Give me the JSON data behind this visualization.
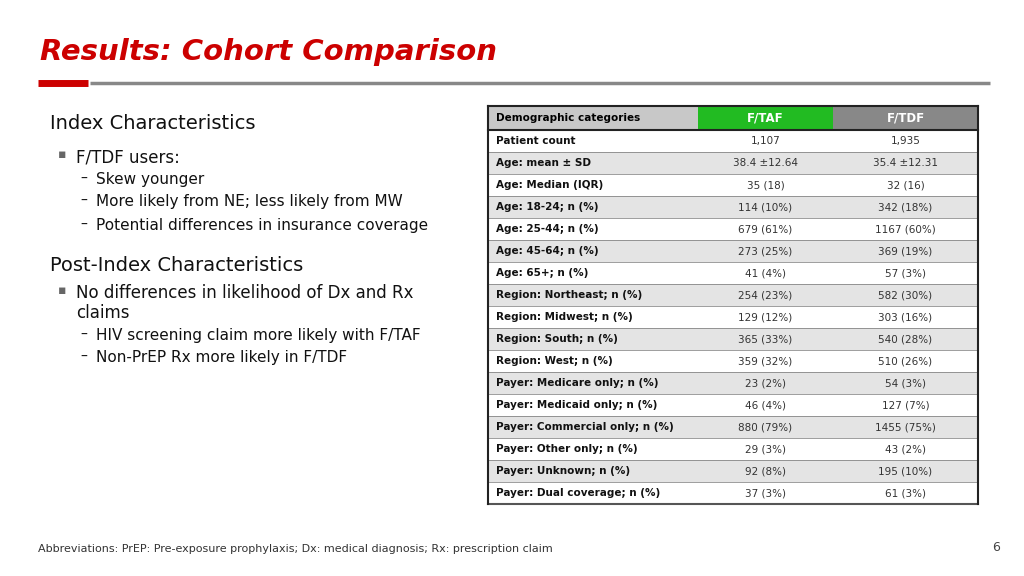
{
  "title": "Results: Cohort Comparison",
  "title_color": "#CC0000",
  "background_color": "#FFFFFF",
  "slide_number": "6",
  "left_text": {
    "section1_heading": "Index Characteristics",
    "bullet1": "F/TDF users:",
    "sub_bullets1": [
      "Skew younger",
      "More likely from NE; less likely from MW",
      "Potential differences in insurance coverage"
    ],
    "section2_heading": "Post-Index Characteristics",
    "bullet2_line1": "No differences in likelihood of Dx and Rx",
    "bullet2_line2": "claims",
    "sub_bullets2": [
      "HIV screening claim more likely with F/TAF",
      "Non-PrEP Rx more likely in F/TDF"
    ]
  },
  "table": {
    "header": [
      "Demographic categories",
      "F/TAF",
      "F/TDF"
    ],
    "header_bg_colors": [
      "#C8C8C8",
      "#22BB22",
      "#888888"
    ],
    "header_text_colors": [
      "#000000",
      "#FFFFFF",
      "#FFFFFF"
    ],
    "rows": [
      [
        "Patient count",
        "1,107",
        "1,935"
      ],
      [
        "Age: mean ± SD",
        "38.4 ±12.64",
        "35.4 ±12.31"
      ],
      [
        "Age: Median (IQR)",
        "35 (18)",
        "32 (16)"
      ],
      [
        "Age: 18-24; n (%)",
        "114 (10%)",
        "342 (18%)"
      ],
      [
        "Age: 25-44; n (%)",
        "679 (61%)",
        "1167 (60%)"
      ],
      [
        "Age: 45-64; n (%)",
        "273 (25%)",
        "369 (19%)"
      ],
      [
        "Age: 65+; n (%)",
        "41 (4%)",
        "57 (3%)"
      ],
      [
        "Region: Northeast; n (%)",
        "254 (23%)",
        "582 (30%)"
      ],
      [
        "Region: Midwest; n (%)",
        "129 (12%)",
        "303 (16%)"
      ],
      [
        "Region: South; n (%)",
        "365 (33%)",
        "540 (28%)"
      ],
      [
        "Region: West; n (%)",
        "359 (32%)",
        "510 (26%)"
      ],
      [
        "Payer: Medicare only; n (%)",
        "23 (2%)",
        "54 (3%)"
      ],
      [
        "Payer: Medicaid only; n (%)",
        "46 (4%)",
        "127 (7%)"
      ],
      [
        "Payer: Commercial only; n (%)",
        "880 (79%)",
        "1455 (75%)"
      ],
      [
        "Payer: Other only; n (%)",
        "29 (3%)",
        "43 (2%)"
      ],
      [
        "Payer: Unknown; n (%)",
        "92 (8%)",
        "195 (10%)"
      ],
      [
        "Payer: Dual coverage; n (%)",
        "37 (3%)",
        "61 (3%)"
      ]
    ],
    "row_colors_alt": [
      "#FFFFFF",
      "#E4E4E4"
    ]
  },
  "footnote": "Abbreviations: PrEP: Pre-exposure prophylaxis; Dx: medical diagnosis; Rx: prescription claim",
  "red_accent_color": "#CC0000",
  "gray_accent_color": "#888888",
  "border_color": "#222222"
}
